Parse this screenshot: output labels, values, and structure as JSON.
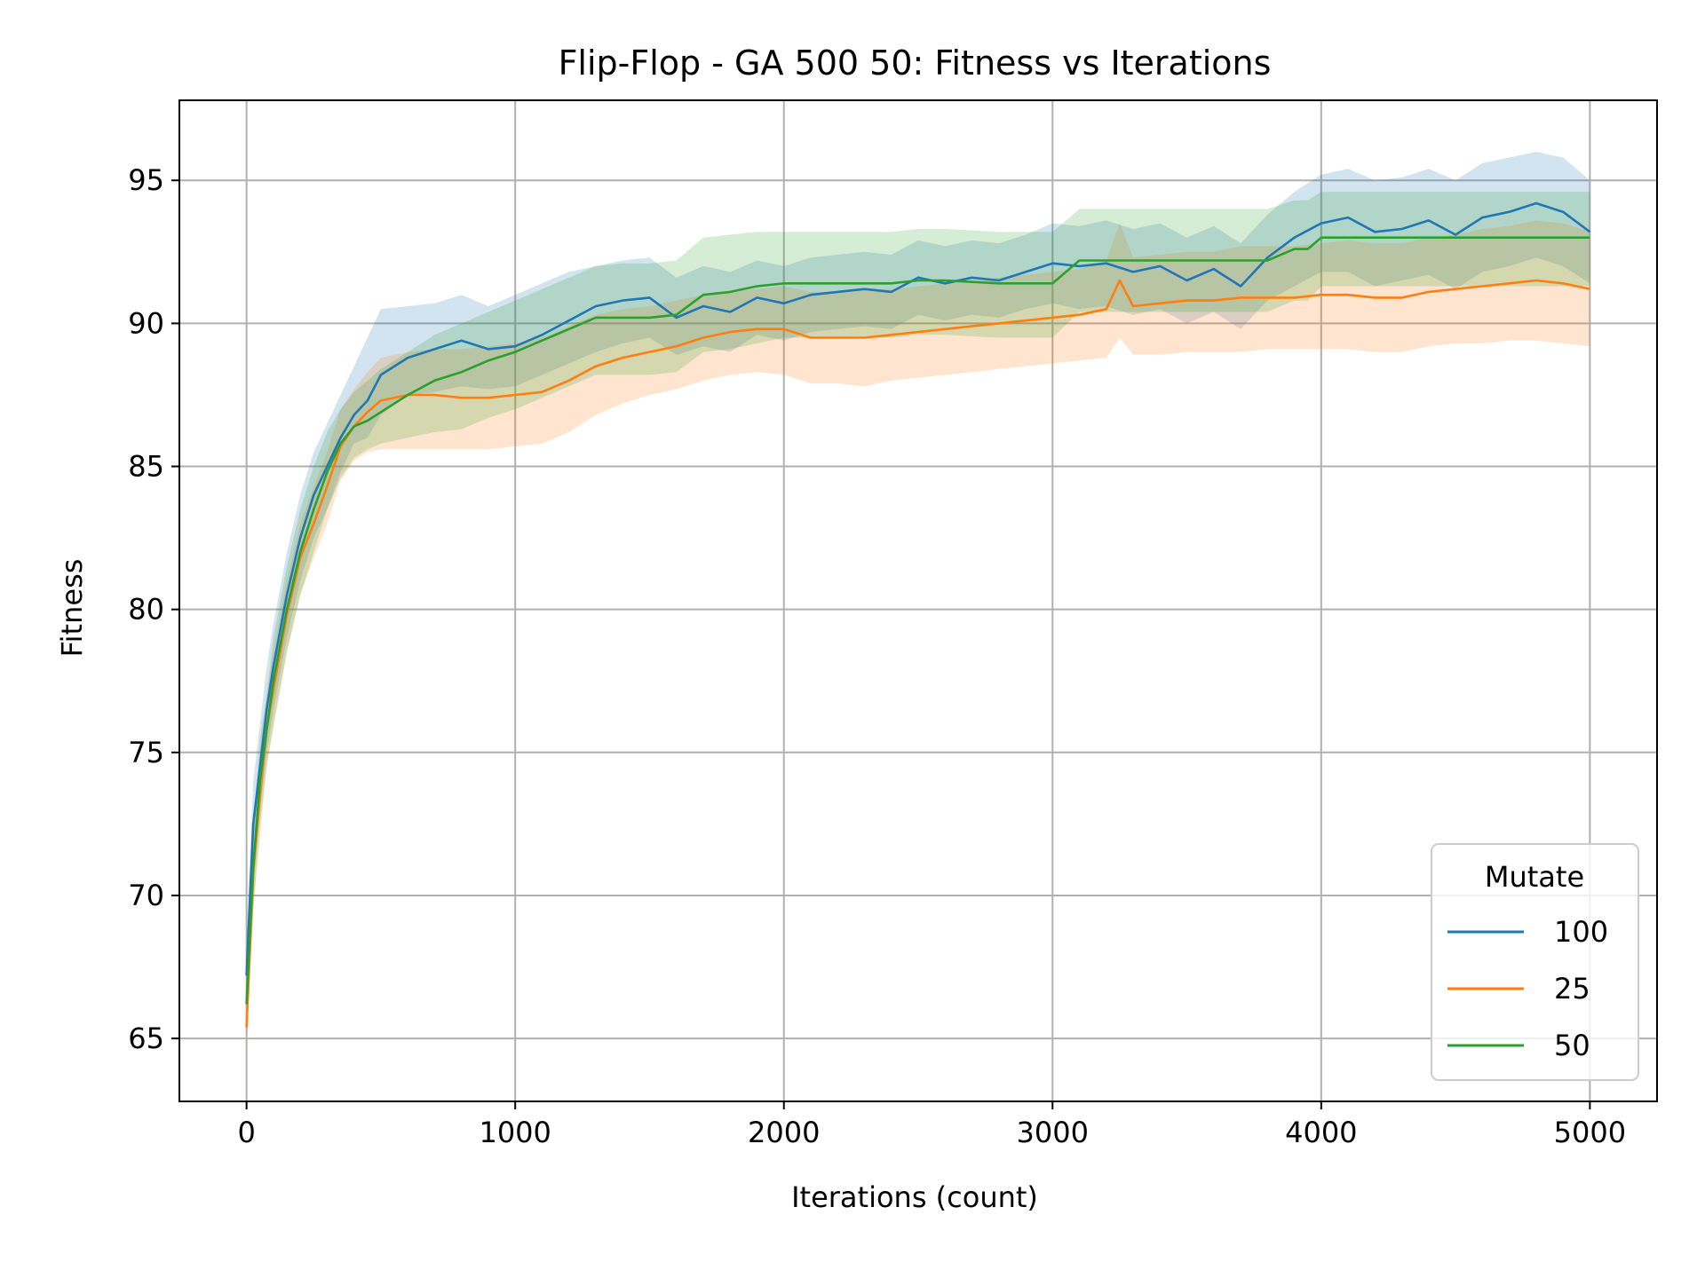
{
  "chart_data": {
    "type": "line",
    "title": "Flip-Flop - GA 500 50: Fitness vs Iterations",
    "xlabel": "Iterations (count)",
    "ylabel": "Fitness",
    "xlim": [
      -250,
      5250
    ],
    "ylim": [
      62.8,
      97.8
    ],
    "xticks": [
      0,
      1000,
      2000,
      3000,
      4000,
      5000
    ],
    "yticks": [
      65,
      70,
      75,
      80,
      85,
      90,
      95
    ],
    "grid": true,
    "legend": {
      "title": "Mutate",
      "placement": "lower right"
    },
    "series": [
      {
        "name": "100",
        "color": "#1f77b4",
        "x": [
          0,
          25,
          50,
          75,
          100,
          150,
          200,
          250,
          300,
          350,
          400,
          450,
          500,
          600,
          700,
          800,
          900,
          1000,
          1100,
          1200,
          1300,
          1400,
          1500,
          1600,
          1700,
          1800,
          1900,
          2000,
          2100,
          2200,
          2300,
          2400,
          2500,
          2600,
          2700,
          2800,
          2900,
          3000,
          3100,
          3200,
          3300,
          3400,
          3500,
          3600,
          3700,
          3800,
          3900,
          4000,
          4100,
          4200,
          4300,
          4400,
          4500,
          4600,
          4700,
          4800,
          4900,
          5000
        ],
        "y": [
          67.2,
          72.5,
          74.5,
          76.5,
          78.0,
          80.5,
          82.5,
          84.0,
          85.0,
          86.0,
          86.8,
          87.3,
          88.2,
          88.8,
          89.1,
          89.4,
          89.1,
          89.2,
          89.6,
          90.1,
          90.6,
          90.8,
          90.9,
          90.2,
          90.6,
          90.4,
          90.9,
          90.7,
          91.0,
          91.1,
          91.2,
          91.1,
          91.6,
          91.4,
          91.6,
          91.5,
          91.8,
          92.1,
          92.0,
          92.1,
          91.8,
          92.0,
          91.5,
          91.9,
          91.3,
          92.3,
          93.0,
          93.5,
          93.7,
          93.2,
          93.3,
          93.6,
          93.1,
          93.7,
          93.9,
          94.2,
          93.9,
          93.2
        ],
        "band_low": [
          66.0,
          71.0,
          73.0,
          75.0,
          76.5,
          79.0,
          81.0,
          82.5,
          83.5,
          84.8,
          85.8,
          86.0,
          86.8,
          87.5,
          87.6,
          87.8,
          87.7,
          87.8,
          88.2,
          88.6,
          89.0,
          89.3,
          89.5,
          88.9,
          89.2,
          89.0,
          89.6,
          89.4,
          89.7,
          89.8,
          89.9,
          89.8,
          90.3,
          90.1,
          90.3,
          90.2,
          90.5,
          90.7,
          90.5,
          90.6,
          90.3,
          90.5,
          90.0,
          90.4,
          89.8,
          90.8,
          91.3,
          91.8,
          91.8,
          91.3,
          91.5,
          91.7,
          91.2,
          91.8,
          92.0,
          92.3,
          92.0,
          91.4
        ],
        "band_high": [
          68.5,
          74.0,
          76.0,
          78.0,
          79.5,
          82.0,
          84.0,
          85.5,
          86.5,
          87.5,
          88.5,
          89.5,
          90.5,
          90.6,
          90.7,
          91.0,
          90.6,
          91.0,
          91.4,
          91.8,
          92.0,
          92.2,
          92.3,
          91.6,
          92.0,
          91.8,
          92.2,
          92.0,
          92.3,
          92.4,
          92.5,
          92.4,
          92.9,
          92.7,
          92.9,
          92.8,
          93.1,
          93.5,
          93.4,
          93.6,
          93.3,
          93.5,
          93.0,
          93.4,
          92.8,
          93.8,
          94.6,
          95.2,
          95.4,
          95.0,
          95.1,
          95.4,
          95.0,
          95.6,
          95.8,
          96.0,
          95.8,
          95.0
        ]
      },
      {
        "name": "25",
        "color": "#ff7f0e",
        "x": [
          0,
          25,
          50,
          75,
          100,
          150,
          200,
          250,
          300,
          350,
          400,
          450,
          500,
          600,
          700,
          800,
          900,
          1000,
          1100,
          1200,
          1300,
          1400,
          1500,
          1600,
          1700,
          1800,
          1900,
          2000,
          2100,
          2200,
          2300,
          2400,
          2500,
          2600,
          2700,
          2800,
          2900,
          3000,
          3100,
          3200,
          3250,
          3300,
          3400,
          3500,
          3600,
          3700,
          3800,
          3900,
          4000,
          4100,
          4200,
          4300,
          4400,
          4500,
          4600,
          4700,
          4800,
          4900,
          5000
        ],
        "y": [
          65.4,
          70.8,
          73.5,
          75.8,
          77.2,
          79.8,
          81.8,
          83.0,
          84.3,
          85.7,
          86.4,
          86.9,
          87.3,
          87.5,
          87.5,
          87.4,
          87.4,
          87.5,
          87.6,
          88.0,
          88.5,
          88.8,
          89.0,
          89.2,
          89.5,
          89.7,
          89.8,
          89.8,
          89.5,
          89.5,
          89.5,
          89.6,
          89.7,
          89.8,
          89.9,
          90.0,
          90.1,
          90.2,
          90.3,
          90.5,
          91.5,
          90.6,
          90.7,
          90.8,
          90.8,
          90.9,
          90.9,
          90.9,
          91.0,
          91.0,
          90.9,
          90.9,
          91.1,
          91.2,
          91.3,
          91.4,
          91.5,
          91.4,
          91.2
        ],
        "band_low": [
          64.5,
          69.5,
          72.0,
          74.5,
          75.8,
          78.5,
          80.5,
          81.8,
          83.0,
          84.5,
          85.2,
          85.5,
          85.6,
          85.6,
          85.6,
          85.6,
          85.6,
          85.7,
          85.8,
          86.2,
          86.8,
          87.2,
          87.5,
          87.7,
          88.0,
          88.2,
          88.3,
          88.2,
          87.9,
          87.9,
          87.8,
          88.0,
          88.1,
          88.2,
          88.3,
          88.4,
          88.5,
          88.6,
          88.7,
          88.8,
          89.5,
          88.9,
          88.9,
          89.0,
          89.0,
          89.0,
          89.1,
          89.1,
          89.1,
          89.1,
          89.0,
          89.0,
          89.2,
          89.3,
          89.3,
          89.4,
          89.4,
          89.3,
          89.2
        ],
        "band_high": [
          66.5,
          72.0,
          75.0,
          77.0,
          78.5,
          81.0,
          83.0,
          84.3,
          85.5,
          87.0,
          87.7,
          88.3,
          88.8,
          89.0,
          89.1,
          89.1,
          89.2,
          89.3,
          89.5,
          89.9,
          90.3,
          90.5,
          90.6,
          90.8,
          91.0,
          91.1,
          91.2,
          91.3,
          91.1,
          91.1,
          91.2,
          91.2,
          91.3,
          91.4,
          91.5,
          91.6,
          91.7,
          91.8,
          91.9,
          92.2,
          93.5,
          92.3,
          92.4,
          92.5,
          92.5,
          92.7,
          92.7,
          92.7,
          92.8,
          92.9,
          92.8,
          92.8,
          93.0,
          93.1,
          93.3,
          93.4,
          93.6,
          93.5,
          93.2
        ]
      },
      {
        "name": "50",
        "color": "#2ca02c",
        "x": [
          0,
          25,
          50,
          75,
          100,
          150,
          200,
          250,
          300,
          350,
          400,
          450,
          500,
          600,
          700,
          800,
          900,
          1000,
          1100,
          1200,
          1300,
          1400,
          1500,
          1600,
          1700,
          1800,
          1900,
          2000,
          2200,
          2400,
          2500,
          2600,
          2800,
          3000,
          3100,
          3200,
          3400,
          3600,
          3700,
          3800,
          3900,
          3950,
          4000,
          4200,
          4400,
          4600,
          4800,
          5000
        ],
        "y": [
          66.2,
          71.0,
          74.0,
          75.8,
          77.5,
          80.0,
          82.0,
          83.5,
          84.8,
          85.8,
          86.4,
          86.6,
          86.9,
          87.5,
          88.0,
          88.3,
          88.7,
          89.0,
          89.4,
          89.8,
          90.2,
          90.2,
          90.2,
          90.3,
          91.0,
          91.1,
          91.3,
          91.4,
          91.4,
          91.4,
          91.5,
          91.5,
          91.4,
          91.4,
          92.2,
          92.2,
          92.2,
          92.2,
          92.2,
          92.2,
          92.6,
          92.6,
          93.0,
          93.0,
          93.0,
          93.0,
          93.0,
          93.0
        ],
        "band_low": [
          65.0,
          69.5,
          72.5,
          74.5,
          76.0,
          78.5,
          80.5,
          82.0,
          83.5,
          84.6,
          85.3,
          85.6,
          85.8,
          86.0,
          86.2,
          86.3,
          86.7,
          87.0,
          87.4,
          87.8,
          88.2,
          88.2,
          88.2,
          88.3,
          89.0,
          89.1,
          89.3,
          89.5,
          89.5,
          89.5,
          89.6,
          89.6,
          89.5,
          89.5,
          90.4,
          90.4,
          90.4,
          90.4,
          90.4,
          90.4,
          90.8,
          90.8,
          91.3,
          91.3,
          91.3,
          91.3,
          91.3,
          91.3
        ],
        "band_high": [
          67.5,
          72.5,
          75.5,
          77.0,
          79.0,
          81.5,
          83.5,
          85.0,
          86.2,
          87.0,
          87.6,
          88.0,
          88.4,
          89.0,
          89.6,
          90.0,
          90.4,
          90.8,
          91.2,
          91.6,
          92.0,
          92.1,
          92.1,
          92.2,
          93.0,
          93.1,
          93.2,
          93.2,
          93.2,
          93.2,
          93.3,
          93.3,
          93.2,
          93.2,
          94.0,
          94.0,
          94.0,
          94.0,
          94.0,
          94.0,
          94.3,
          94.3,
          94.6,
          94.6,
          94.6,
          94.6,
          94.6,
          94.6
        ]
      }
    ]
  }
}
